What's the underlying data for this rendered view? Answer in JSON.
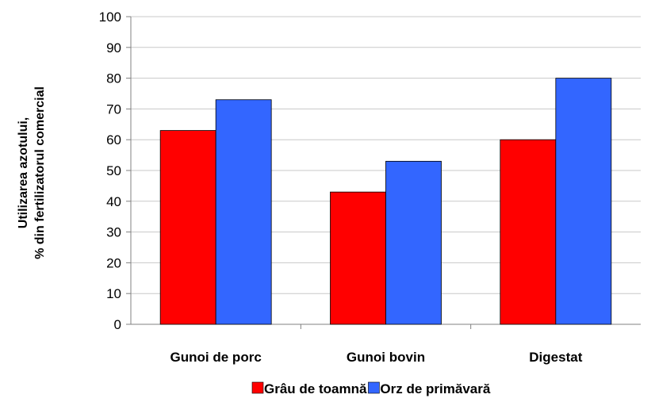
{
  "chart_data": {
    "type": "bar",
    "title": "",
    "xlabel": "",
    "ylabel_lines": [
      "Utilizarea azotului,",
      "% din fertilizatorul comercial"
    ],
    "ylim": [
      0,
      100
    ],
    "yticks": [
      0,
      10,
      20,
      30,
      40,
      50,
      60,
      70,
      80,
      90,
      100
    ],
    "grid": true,
    "legend_position": "bottom",
    "categories": [
      "Gunoi de porc",
      "Gunoi bovin",
      "Digestat"
    ],
    "series": [
      {
        "name": "Grâu de toamnă",
        "color": "#ff0000",
        "values": [
          63,
          43,
          60
        ]
      },
      {
        "name": "Orz de primăvară",
        "color": "#3366ff",
        "values": [
          73,
          53,
          80
        ]
      }
    ]
  }
}
